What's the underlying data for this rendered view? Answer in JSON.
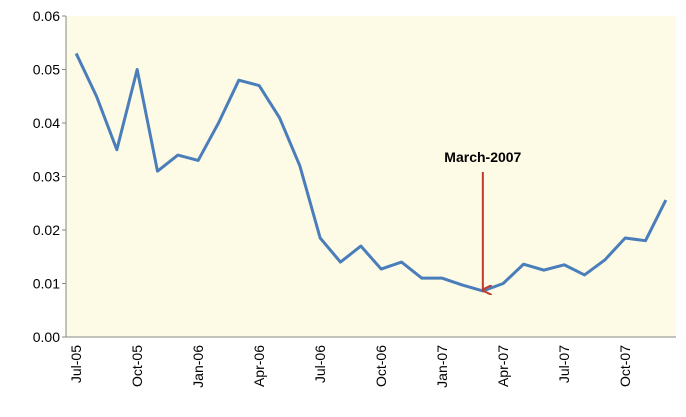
{
  "chart_data": {
    "type": "line",
    "annotation": "March-2007",
    "categories": [
      "Jul-05",
      null,
      null,
      "Oct-05",
      null,
      null,
      "Jan-06",
      null,
      null,
      "Apr-06",
      null,
      null,
      "Jul-06",
      null,
      null,
      "Oct-06",
      null,
      null,
      "Jan-07",
      null,
      null,
      "Apr-07",
      null,
      null,
      "Jul-07",
      null,
      null,
      "Oct-07",
      null,
      null
    ],
    "values": [
      0.053,
      0.045,
      0.035,
      0.05,
      0.031,
      0.034,
      0.033,
      0.04,
      0.048,
      0.047,
      0.041,
      0.032,
      0.0185,
      0.014,
      0.017,
      0.0127,
      0.014,
      0.011,
      0.011,
      0.0097,
      0.0086,
      0.01,
      0.0136,
      0.0125,
      0.0135,
      0.0116,
      0.0144,
      0.0185,
      0.018,
      0.0256
    ],
    "color": "#4a7ebb",
    "ylim": [
      0,
      0.06
    ],
    "yticks": [
      {
        "value": 0,
        "label": "0.00"
      },
      0.01,
      0.02,
      0.03,
      0.04,
      0.05,
      0.06
    ],
    "grid": false
  }
}
